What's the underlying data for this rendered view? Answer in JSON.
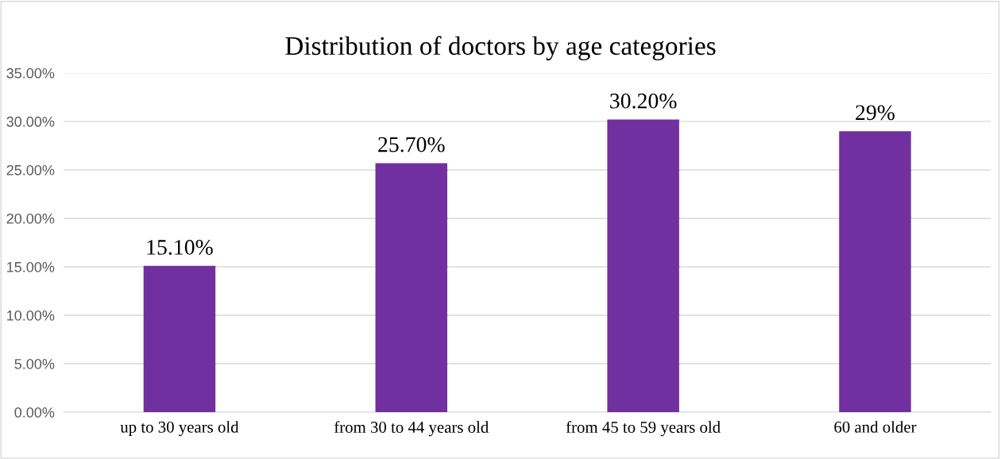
{
  "chart_data": {
    "type": "bar",
    "title": "Distribution of doctors by age categories",
    "categories": [
      "up to 30 years old",
      "from 30 to 44 years old",
      "from 45 to 59 years old",
      "60 and older"
    ],
    "values": [
      15.1,
      25.7,
      30.2,
      29
    ],
    "value_labels": [
      "15.10%",
      "25.70%",
      "30.20%",
      "29%"
    ],
    "color": "#7030a0",
    "ylim": [
      0,
      35
    ],
    "yticks": [
      {
        "value": 0,
        "label": "0.00%"
      },
      {
        "value": 5,
        "label": "5.00%"
      },
      {
        "value": 10,
        "label": "10.00%"
      },
      {
        "value": 15,
        "label": "15.00%"
      },
      {
        "value": 20,
        "label": "20.00%"
      },
      {
        "value": 25,
        "label": "25.00%"
      },
      {
        "value": 30,
        "label": "30.00%"
      },
      {
        "value": 35,
        "label": "35.00%"
      }
    ],
    "grid": "y"
  }
}
